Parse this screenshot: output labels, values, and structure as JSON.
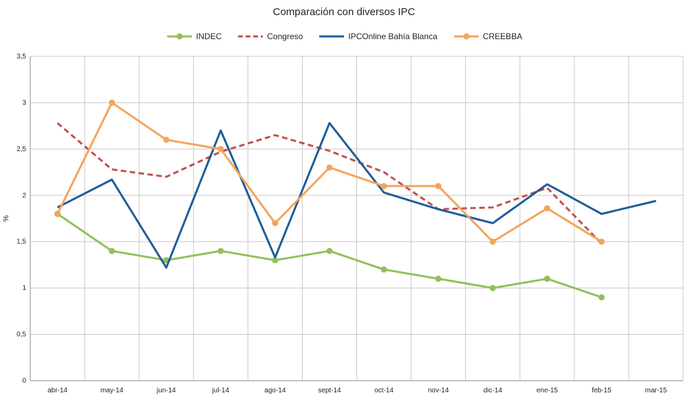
{
  "chart_data": {
    "type": "line",
    "title": "Comparación con diversos IPC",
    "xlabel": "",
    "ylabel": "%",
    "ylim": [
      0,
      3.5
    ],
    "ytick_step": 0.5,
    "yticks": [
      "0",
      "0,5",
      "1",
      "1,5",
      "2",
      "2,5",
      "3",
      "3,5"
    ],
    "grid": true,
    "legend_position": "top",
    "categories": [
      "abr-14",
      "may-14",
      "jun-14",
      "jul-14",
      "ago-14",
      "sept-14",
      "oct-14",
      "nov-14",
      "dic-14",
      "ene-15",
      "feb-15",
      "mar-15"
    ],
    "series": [
      {
        "name": "INDEC",
        "color": "#92c05a",
        "style": "solid-markers",
        "values": [
          1.8,
          1.4,
          1.3,
          1.4,
          1.3,
          1.4,
          1.2,
          1.1,
          1.0,
          1.1,
          0.9,
          null
        ]
      },
      {
        "name": "Congreso",
        "color": "#c0504d",
        "style": "dashed",
        "values": [
          2.78,
          2.28,
          2.2,
          2.47,
          2.65,
          2.48,
          2.25,
          1.85,
          1.87,
          2.08,
          1.48,
          null
        ]
      },
      {
        "name": "IPCOnline Bahía Blanca",
        "color": "#1f5c99",
        "style": "solid",
        "values": [
          1.87,
          2.17,
          1.22,
          2.7,
          1.33,
          2.78,
          2.03,
          1.85,
          1.7,
          2.12,
          1.8,
          1.94
        ]
      },
      {
        "name": "CREEBBA",
        "color": "#f2a55b",
        "style": "solid-markers",
        "values": [
          1.8,
          3.0,
          2.6,
          2.5,
          1.7,
          2.3,
          2.1,
          2.1,
          1.5,
          1.86,
          1.5,
          null
        ]
      }
    ]
  }
}
